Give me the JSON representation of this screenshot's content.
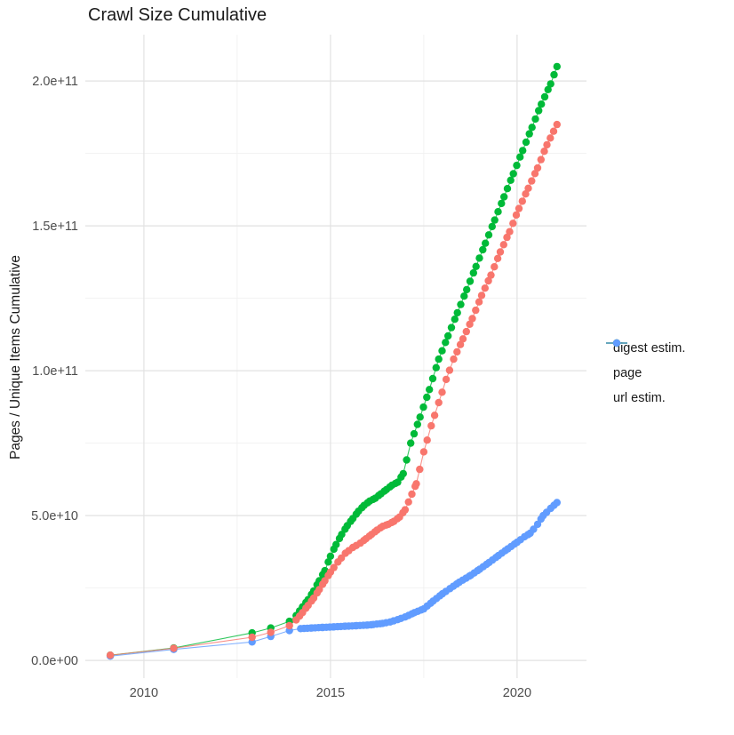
{
  "title": "Crawl Size Cumulative",
  "y_axis": {
    "label": "Pages / Unique Items Cumulative",
    "tick_values": [
      0,
      50000000000.0,
      100000000000.0,
      150000000000.0,
      200000000000.0
    ],
    "tick_labels": [
      "0.0e+00",
      "5.0e+10",
      "1.0e+11",
      "1.5e+11",
      "2.0e+11"
    ],
    "minor_tick_values": [
      25000000000.0,
      75000000000.0,
      125000000000.0,
      175000000000.0
    ],
    "range": [
      -6100000000.0,
      216000000000.0
    ]
  },
  "x_axis": {
    "tick_values": [
      2010,
      2015,
      2020
    ],
    "tick_labels": [
      "2010",
      "2015",
      "2020"
    ],
    "minor_tick_values": [
      2012.5,
      2017.5
    ],
    "range": [
      2008.43,
      2021.86
    ]
  },
  "legend": {
    "position": "right",
    "entries": [
      {
        "label": "digest estim.",
        "color": "#f8766d"
      },
      {
        "label": "page",
        "color": "#00ba38"
      },
      {
        "label": "url estim.",
        "color": "#619cff"
      }
    ]
  },
  "colors": {
    "grid_major": "#e2e2e2",
    "grid_minor": "#efefef",
    "tick_label": "#4d4d4d",
    "title": "#1a1a1a",
    "background": "#ffffff"
  },
  "chart_data": {
    "type": "scatter",
    "note": "cumulative crawl size over time; x = year, y = pages / unique items",
    "grid": true,
    "legend_position": "right",
    "dot_spacing_years": 0.09,
    "dense_from_year": 2014,
    "series": [
      {
        "name": "page",
        "color": "#00ba38",
        "points": [
          [
            2009.1,
            1800000000.0
          ],
          [
            2010.8,
            4300000000.0
          ],
          [
            2012.9,
            9500000000.0
          ],
          [
            2013.4,
            11200000000.0
          ],
          [
            2013.9,
            13500000000.0
          ],
          [
            2014.08,
            15500000000.0
          ],
          [
            2014.25,
            18500000000.0
          ],
          [
            2014.4,
            21000000000.0
          ],
          [
            2014.55,
            24000000000.0
          ],
          [
            2014.7,
            27500000000.0
          ],
          [
            2014.85,
            31000000000.0
          ],
          [
            2015.0,
            36000000000.0
          ],
          [
            2015.15,
            40000000000.0
          ],
          [
            2015.3,
            43500000000.0
          ],
          [
            2015.45,
            46500000000.0
          ],
          [
            2015.6,
            49000000000.0
          ],
          [
            2015.75,
            51500000000.0
          ],
          [
            2015.9,
            53500000000.0
          ],
          [
            2016.05,
            55000000000.0
          ],
          [
            2016.2,
            56000000000.0
          ],
          [
            2016.35,
            57500000000.0
          ],
          [
            2016.5,
            59000000000.0
          ],
          [
            2016.65,
            60500000000.0
          ],
          [
            2016.8,
            61500000000.0
          ],
          [
            2016.95,
            64500000000.0
          ],
          [
            2017.15,
            75000000000.0
          ],
          [
            2017.4,
            84000000000.0
          ],
          [
            2017.65,
            93500000000.0
          ],
          [
            2017.9,
            104000000000.0
          ],
          [
            2018.15,
            112000000000.0
          ],
          [
            2018.4,
            120000000000.0
          ],
          [
            2018.65,
            128000000000.0
          ],
          [
            2018.9,
            136000000000.0
          ],
          [
            2019.15,
            144000000000.0
          ],
          [
            2019.4,
            152000000000.0
          ],
          [
            2019.65,
            160000000000.0
          ],
          [
            2019.9,
            168000000000.0
          ],
          [
            2020.15,
            176000000000.0
          ],
          [
            2020.4,
            184000000000.0
          ],
          [
            2020.65,
            192000000000.0
          ],
          [
            2020.9,
            199000000000.0
          ],
          [
            2021.07,
            205000000000.0
          ]
        ]
      },
      {
        "name": "url estim.",
        "color": "#619cff",
        "points": [
          [
            2009.1,
            1500000000.0
          ],
          [
            2010.8,
            3800000000.0
          ],
          [
            2012.9,
            6400000000.0
          ],
          [
            2013.4,
            8300000000.0
          ],
          [
            2013.9,
            10300000000.0
          ],
          [
            2014.2,
            11000000000.0
          ],
          [
            2014.5,
            11200000000.0
          ],
          [
            2014.8,
            11400000000.0
          ],
          [
            2015.1,
            11600000000.0
          ],
          [
            2015.4,
            11800000000.0
          ],
          [
            2015.7,
            12000000000.0
          ],
          [
            2016.0,
            12200000000.0
          ],
          [
            2016.15,
            12400000000.0
          ],
          [
            2016.4,
            12800000000.0
          ],
          [
            2016.6,
            13300000000.0
          ],
          [
            2016.8,
            14100000000.0
          ],
          [
            2017.0,
            15000000000.0
          ],
          [
            2017.25,
            16500000000.0
          ],
          [
            2017.5,
            17800000000.0
          ],
          [
            2017.75,
            20500000000.0
          ],
          [
            2018.0,
            23000000000.0
          ],
          [
            2018.2,
            24800000000.0
          ],
          [
            2018.45,
            27000000000.0
          ],
          [
            2018.76,
            29400000000.0
          ],
          [
            2019.0,
            31500000000.0
          ],
          [
            2019.25,
            33800000000.0
          ],
          [
            2019.5,
            36200000000.0
          ],
          [
            2019.75,
            38500000000.0
          ],
          [
            2020.0,
            40800000000.0
          ],
          [
            2020.2,
            42700000000.0
          ],
          [
            2020.35,
            43900000000.0
          ],
          [
            2020.55,
            47000000000.0
          ],
          [
            2020.7,
            50000000000.0
          ],
          [
            2020.9,
            52500000000.0
          ],
          [
            2021.07,
            54500000000.0
          ]
        ]
      },
      {
        "name": "digest estim.",
        "color": "#f8766d",
        "points": [
          [
            2009.1,
            1800000000.0
          ],
          [
            2010.8,
            4200000000.0
          ],
          [
            2012.9,
            8000000000.0
          ],
          [
            2013.4,
            9700000000.0
          ],
          [
            2013.9,
            12000000000.0
          ],
          [
            2014.08,
            14000000000.0
          ],
          [
            2014.25,
            16500000000.0
          ],
          [
            2014.4,
            19000000000.0
          ],
          [
            2014.55,
            21500000000.0
          ],
          [
            2014.7,
            24500000000.0
          ],
          [
            2014.85,
            27500000000.0
          ],
          [
            2015.0,
            30500000000.0
          ],
          [
            2015.2,
            34000000000.0
          ],
          [
            2015.4,
            37000000000.0
          ],
          [
            2015.6,
            39000000000.0
          ],
          [
            2015.8,
            40500000000.0
          ],
          [
            2015.95,
            42000000000.0
          ],
          [
            2016.1,
            43500000000.0
          ],
          [
            2016.25,
            45000000000.0
          ],
          [
            2016.4,
            46300000000.0
          ],
          [
            2016.55,
            47000000000.0
          ],
          [
            2016.7,
            48000000000.0
          ],
          [
            2016.85,
            49500000000.0
          ],
          [
            2017.0,
            52000000000.0
          ],
          [
            2017.3,
            61000000000.0
          ],
          [
            2017.5,
            72000000000.0
          ],
          [
            2017.7,
            81000000000.0
          ],
          [
            2017.9,
            89000000000.0
          ],
          [
            2018.1,
            97000000000.0
          ],
          [
            2018.3,
            104000000000.0
          ],
          [
            2018.55,
            111000000000.0
          ],
          [
            2018.8,
            118000000000.0
          ],
          [
            2019.05,
            126000000000.0
          ],
          [
            2019.3,
            133000000000.0
          ],
          [
            2019.55,
            141000000000.0
          ],
          [
            2019.8,
            148000000000.0
          ],
          [
            2020.05,
            156000000000.0
          ],
          [
            2020.3,
            163000000000.0
          ],
          [
            2020.55,
            170000000000.0
          ],
          [
            2020.8,
            178000000000.0
          ],
          [
            2021.07,
            185000000000.0
          ]
        ]
      }
    ]
  }
}
